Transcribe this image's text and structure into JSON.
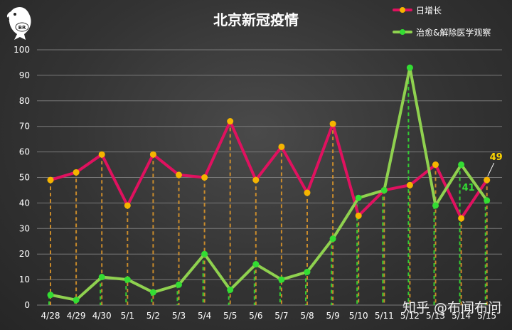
{
  "chart_data": {
    "type": "line",
    "title": "北京新冠疫情",
    "categories": [
      "4/28",
      "4/29",
      "4/30",
      "5/1",
      "5/2",
      "5/3",
      "5/4",
      "5/5",
      "5/6",
      "5/7",
      "5/8",
      "5/9",
      "5/10",
      "5/11",
      "5/12",
      "5/13",
      "5/14",
      "5/15"
    ],
    "ylim": [
      0,
      100
    ],
    "yticks": [
      0,
      10,
      20,
      30,
      40,
      50,
      60,
      70,
      80,
      90,
      100
    ],
    "grid": true,
    "legend_position": "top-right",
    "series": [
      {
        "name": "日增长",
        "color": "#e0115f",
        "marker_color": "#f5b400",
        "values": [
          49,
          52,
          59,
          39,
          59,
          51,
          50,
          72,
          49,
          62,
          44,
          71,
          35,
          45,
          47,
          55,
          34,
          49
        ]
      },
      {
        "name": "治愈&解除医学观察",
        "color": "#8fd14f",
        "marker_color": "#33dd33",
        "values": [
          4,
          2,
          11,
          10,
          5,
          8,
          20,
          6,
          16,
          10,
          13,
          26,
          42,
          45,
          93,
          39,
          55,
          41
        ]
      }
    ],
    "annotations": [
      {
        "text": "49",
        "color": "#ffd700"
      },
      {
        "text": "41",
        "color": "#33dd33"
      }
    ]
  },
  "logo_text": "BR",
  "watermark": "知乎 @布闻布问"
}
